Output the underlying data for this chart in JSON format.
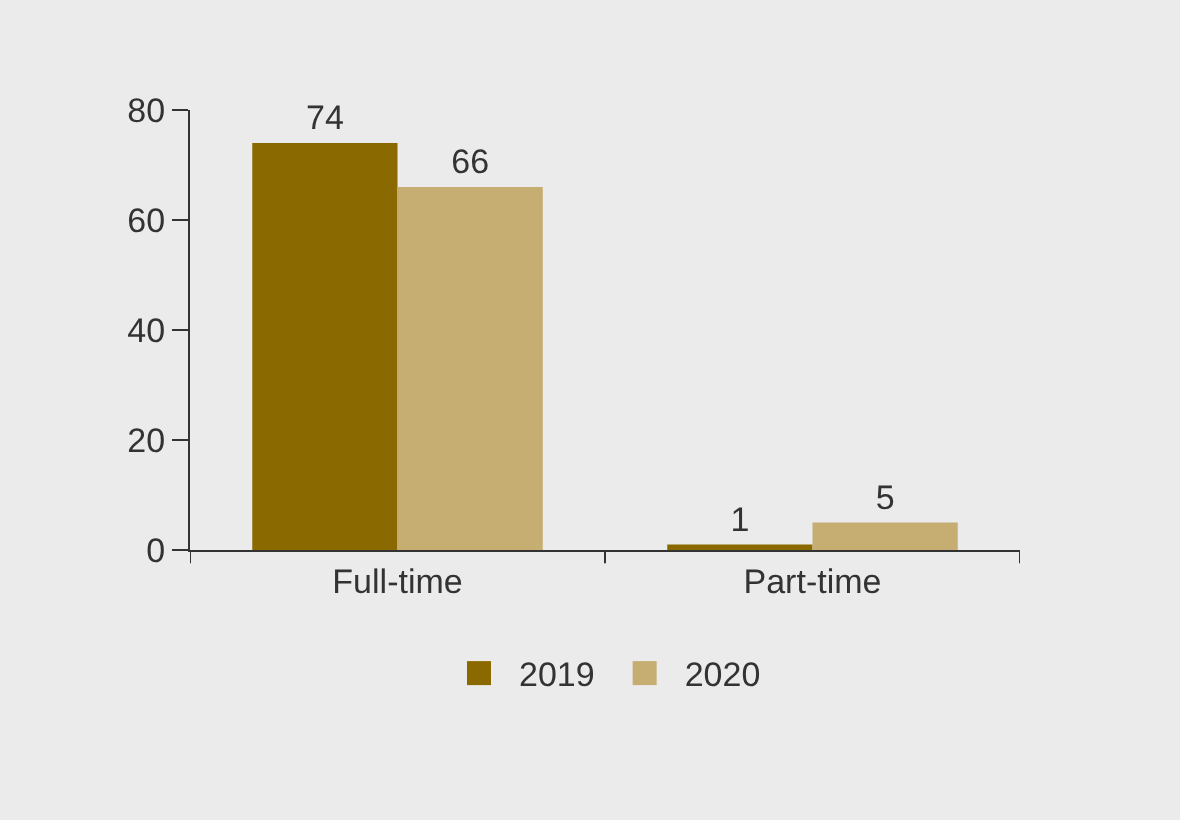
{
  "chart_data": {
    "type": "bar",
    "categories": [
      "Full-time",
      "Part-time"
    ],
    "series": [
      {
        "name": "2019",
        "color": "#8a6a00",
        "values": [
          74,
          1
        ]
      },
      {
        "name": "2020",
        "color": "#c6ae72",
        "values": [
          66,
          5
        ]
      }
    ],
    "ylim": [
      0,
      80
    ],
    "yticks": [
      0,
      20,
      40,
      60,
      80
    ],
    "grid": false,
    "legend": "bottom",
    "data_labels": true
  }
}
